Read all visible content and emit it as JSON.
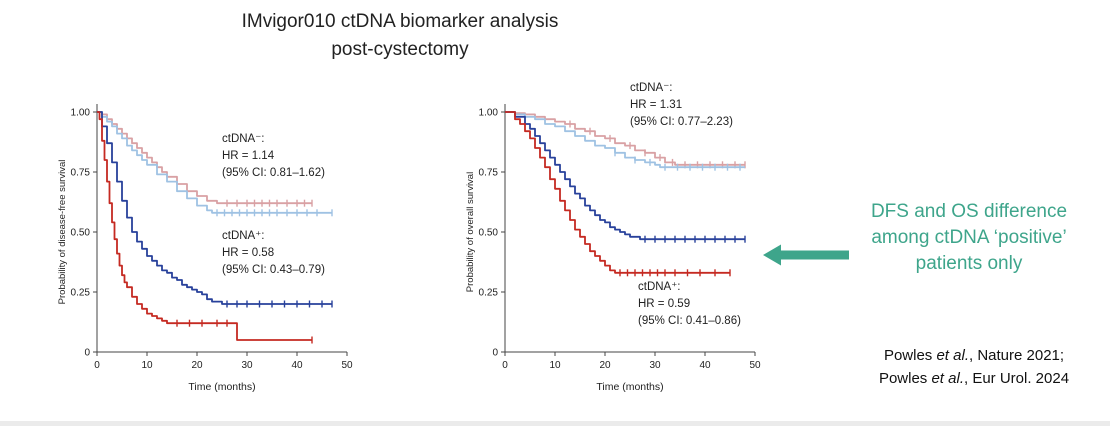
{
  "title": {
    "line1": "IMvigor010 ctDNA biomarker analysis",
    "line2": "post-cystectomy"
  },
  "annotation": {
    "line1": "DFS and OS difference",
    "line2": "among ctDNA ‘positive’",
    "line3": "patients only",
    "color": "#3EA58B",
    "arrow_icon": "left-arrow"
  },
  "citation": {
    "lines": [
      [
        {
          "t": "Powles "
        },
        {
          "t": "et al.",
          "i": true
        },
        {
          "t": ", Nature 2021;"
        }
      ],
      [
        {
          "t": "Powles "
        },
        {
          "t": "et al.",
          "i": true
        },
        {
          "t": ", Eur Urol. 2024"
        }
      ]
    ]
  },
  "chart_data": [
    {
      "type": "line",
      "subtype": "kaplan-meier-step",
      "title": "",
      "xlabel": "Time (months)",
      "ylabel": "Probability of disease-free survival",
      "xlim": [
        0,
        50
      ],
      "ylim": [
        0,
        1
      ],
      "xticks": [
        0,
        10,
        20,
        30,
        40,
        50
      ],
      "yticks": [
        0,
        0.25,
        0.5,
        0.75,
        1
      ],
      "ytick_labels": [
        "0",
        "0.25",
        "0.50",
        "0.75",
        "1.00"
      ],
      "grid": false,
      "legend_position": "none",
      "annotations": [
        {
          "group": "ctDNA-negative",
          "lines": [
            "ctDNA⁻:",
            "HR = 1.14",
            "(95% CI: 0.81–1.62)"
          ]
        },
        {
          "group": "ctDNA-positive",
          "lines": [
            "ctDNA⁺:",
            "HR = 0.58",
            "(95% CI: 0.43–0.79)"
          ]
        }
      ],
      "series": [
        {
          "name": "ctDNA-negative arm 1",
          "color": "#D9A1A4",
          "points": [
            [
              0,
              1.0
            ],
            [
              1,
              0.99
            ],
            [
              2,
              0.97
            ],
            [
              3,
              0.95
            ],
            [
              4,
              0.93
            ],
            [
              5,
              0.91
            ],
            [
              6,
              0.89
            ],
            [
              7,
              0.87
            ],
            [
              8,
              0.85
            ],
            [
              9,
              0.83
            ],
            [
              10,
              0.81
            ],
            [
              11,
              0.79
            ],
            [
              12,
              0.77
            ],
            [
              13,
              0.75
            ],
            [
              14,
              0.73
            ],
            [
              16,
              0.7
            ],
            [
              18,
              0.67
            ],
            [
              20,
              0.65
            ],
            [
              22,
              0.63
            ],
            [
              24,
              0.62
            ],
            [
              26,
              0.62
            ],
            [
              43,
              0.62
            ]
          ],
          "censors": [
            26,
            28,
            30,
            31.5,
            33,
            34.5,
            36,
            38,
            40,
            41.5,
            43
          ]
        },
        {
          "name": "ctDNA-negative arm 2",
          "color": "#9FC2E3",
          "points": [
            [
              0,
              1.0
            ],
            [
              1,
              0.98
            ],
            [
              2,
              0.96
            ],
            [
              3,
              0.94
            ],
            [
              4,
              0.91
            ],
            [
              5,
              0.89
            ],
            [
              6,
              0.86
            ],
            [
              7,
              0.84
            ],
            [
              8,
              0.82
            ],
            [
              9,
              0.8
            ],
            [
              10,
              0.78
            ],
            [
              12,
              0.74
            ],
            [
              14,
              0.71
            ],
            [
              16,
              0.67
            ],
            [
              18,
              0.64
            ],
            [
              20,
              0.61
            ],
            [
              22,
              0.59
            ],
            [
              23,
              0.58
            ],
            [
              47,
              0.58
            ]
          ],
          "censors": [
            24,
            25.5,
            27,
            28.5,
            30,
            31.5,
            33,
            34.5,
            36,
            38,
            40,
            42,
            44,
            47
          ]
        },
        {
          "name": "ctDNA-positive arm 1",
          "color": "#28419B",
          "points": [
            [
              0,
              1.0
            ],
            [
              1,
              0.94
            ],
            [
              2,
              0.87
            ],
            [
              3,
              0.79
            ],
            [
              4,
              0.71
            ],
            [
              5,
              0.63
            ],
            [
              6,
              0.56
            ],
            [
              7,
              0.5
            ],
            [
              8,
              0.46
            ],
            [
              9,
              0.43
            ],
            [
              10,
              0.4
            ],
            [
              11,
              0.38
            ],
            [
              12,
              0.36
            ],
            [
              13,
              0.34
            ],
            [
              14,
              0.33
            ],
            [
              15,
              0.31
            ],
            [
              16,
              0.3
            ],
            [
              17,
              0.28
            ],
            [
              18,
              0.27
            ],
            [
              19,
              0.26
            ],
            [
              20,
              0.25
            ],
            [
              21,
              0.24
            ],
            [
              22,
              0.22
            ],
            [
              23,
              0.21
            ],
            [
              24,
              0.21
            ],
            [
              25,
              0.2
            ],
            [
              47,
              0.2
            ]
          ],
          "censors": [
            26,
            28,
            30,
            32.5,
            35,
            37.5,
            40,
            42.5,
            45,
            47
          ]
        },
        {
          "name": "ctDNA-positive arm 2",
          "color": "#C52A22",
          "points": [
            [
              0,
              1.0
            ],
            [
              0.5,
              0.97
            ],
            [
              1,
              0.88
            ],
            [
              1.5,
              0.8
            ],
            [
              2,
              0.71
            ],
            [
              2.5,
              0.62
            ],
            [
              3,
              0.54
            ],
            [
              3.5,
              0.47
            ],
            [
              4,
              0.41
            ],
            [
              4.5,
              0.36
            ],
            [
              5,
              0.32
            ],
            [
              5.5,
              0.29
            ],
            [
              6,
              0.27
            ],
            [
              7,
              0.23
            ],
            [
              8,
              0.2
            ],
            [
              9,
              0.18
            ],
            [
              10,
              0.16
            ],
            [
              11,
              0.15
            ],
            [
              12,
              0.14
            ],
            [
              13,
              0.13
            ],
            [
              14,
              0.12
            ],
            [
              15,
              0.12
            ],
            [
              27,
              0.12
            ],
            [
              28,
              0.05
            ],
            [
              43,
              0.05
            ]
          ],
          "censors": [
            16,
            18.5,
            21,
            24,
            26,
            43
          ]
        }
      ]
    },
    {
      "type": "line",
      "subtype": "kaplan-meier-step",
      "title": "",
      "xlabel": "Time (months)",
      "ylabel": "Probability of overall survival",
      "xlim": [
        0,
        50
      ],
      "ylim": [
        0,
        1
      ],
      "xticks": [
        0,
        10,
        20,
        30,
        40,
        50
      ],
      "yticks": [
        0,
        0.25,
        0.5,
        0.75,
        1
      ],
      "ytick_labels": [
        "0",
        "0.25",
        "0.50",
        "0.75",
        "1.00"
      ],
      "grid": false,
      "legend_position": "none",
      "annotations": [
        {
          "group": "ctDNA-negative",
          "lines": [
            "ctDNA⁻:",
            "HR = 1.31",
            "(95% CI: 0.77–2.23)"
          ]
        },
        {
          "group": "ctDNA-positive",
          "lines": [
            "ctDNA⁺:",
            "HR = 0.59",
            "(95% CI: 0.41–0.86)"
          ]
        }
      ],
      "series": [
        {
          "name": "ctDNA-negative arm 1",
          "color": "#D9A1A4",
          "points": [
            [
              0,
              1.0
            ],
            [
              2,
              0.995
            ],
            [
              4,
              0.99
            ],
            [
              6,
              0.98
            ],
            [
              8,
              0.97
            ],
            [
              10,
              0.96
            ],
            [
              12,
              0.95
            ],
            [
              14,
              0.93
            ],
            [
              16,
              0.92
            ],
            [
              18,
              0.9
            ],
            [
              20,
              0.89
            ],
            [
              22,
              0.87
            ],
            [
              24,
              0.86
            ],
            [
              26,
              0.84
            ],
            [
              28,
              0.83
            ],
            [
              30,
              0.81
            ],
            [
              32,
              0.79
            ],
            [
              34,
              0.78
            ],
            [
              36,
              0.78
            ],
            [
              48,
              0.78
            ]
          ],
          "censors": [
            13,
            17,
            21,
            25,
            28,
            31,
            33.5,
            36,
            38.5,
            41,
            43.5,
            46,
            48
          ]
        },
        {
          "name": "ctDNA-negative arm 2",
          "color": "#9FC2E3",
          "points": [
            [
              0,
              1.0
            ],
            [
              2,
              0.99
            ],
            [
              4,
              0.98
            ],
            [
              6,
              0.97
            ],
            [
              8,
              0.95
            ],
            [
              10,
              0.94
            ],
            [
              12,
              0.92
            ],
            [
              14,
              0.9
            ],
            [
              16,
              0.88
            ],
            [
              18,
              0.86
            ],
            [
              20,
              0.85
            ],
            [
              22,
              0.83
            ],
            [
              24,
              0.81
            ],
            [
              26,
              0.8
            ],
            [
              28,
              0.79
            ],
            [
              30,
              0.78
            ],
            [
              31,
              0.77
            ],
            [
              48,
              0.77
            ]
          ],
          "censors": [
            22,
            26,
            29,
            32,
            34.5,
            37,
            39.5,
            42,
            44.5,
            47
          ]
        },
        {
          "name": "ctDNA-positive arm 1",
          "color": "#28419B",
          "points": [
            [
              0,
              1.0
            ],
            [
              2,
              0.98
            ],
            [
              4,
              0.95
            ],
            [
              5,
              0.93
            ],
            [
              6,
              0.9
            ],
            [
              7,
              0.87
            ],
            [
              8,
              0.84
            ],
            [
              9,
              0.81
            ],
            [
              10,
              0.78
            ],
            [
              11,
              0.75
            ],
            [
              12,
              0.72
            ],
            [
              13,
              0.69
            ],
            [
              14,
              0.66
            ],
            [
              15,
              0.64
            ],
            [
              16,
              0.61
            ],
            [
              17,
              0.59
            ],
            [
              18,
              0.57
            ],
            [
              19,
              0.55
            ],
            [
              20,
              0.54
            ],
            [
              21,
              0.52
            ],
            [
              22,
              0.51
            ],
            [
              23,
              0.5
            ],
            [
              24,
              0.49
            ],
            [
              25,
              0.48
            ],
            [
              26,
              0.48
            ],
            [
              27,
              0.47
            ],
            [
              48,
              0.47
            ]
          ],
          "censors": [
            28,
            30,
            32,
            34,
            36,
            38,
            40,
            42,
            44,
            46,
            48
          ]
        },
        {
          "name": "ctDNA-positive arm 2",
          "color": "#C52A22",
          "points": [
            [
              0,
              1.0
            ],
            [
              2,
              0.97
            ],
            [
              3,
              0.95
            ],
            [
              4,
              0.92
            ],
            [
              5,
              0.89
            ],
            [
              6,
              0.85
            ],
            [
              7,
              0.81
            ],
            [
              8,
              0.77
            ],
            [
              9,
              0.72
            ],
            [
              10,
              0.68
            ],
            [
              11,
              0.63
            ],
            [
              12,
              0.59
            ],
            [
              13,
              0.55
            ],
            [
              14,
              0.51
            ],
            [
              15,
              0.48
            ],
            [
              16,
              0.45
            ],
            [
              17,
              0.42
            ],
            [
              18,
              0.4
            ],
            [
              19,
              0.38
            ],
            [
              20,
              0.36
            ],
            [
              21,
              0.34
            ],
            [
              22,
              0.33
            ],
            [
              45,
              0.33
            ]
          ],
          "censors": [
            23,
            24.5,
            26,
            27.5,
            29,
            30.5,
            32,
            34,
            36.5,
            39,
            42,
            45
          ]
        }
      ]
    }
  ]
}
